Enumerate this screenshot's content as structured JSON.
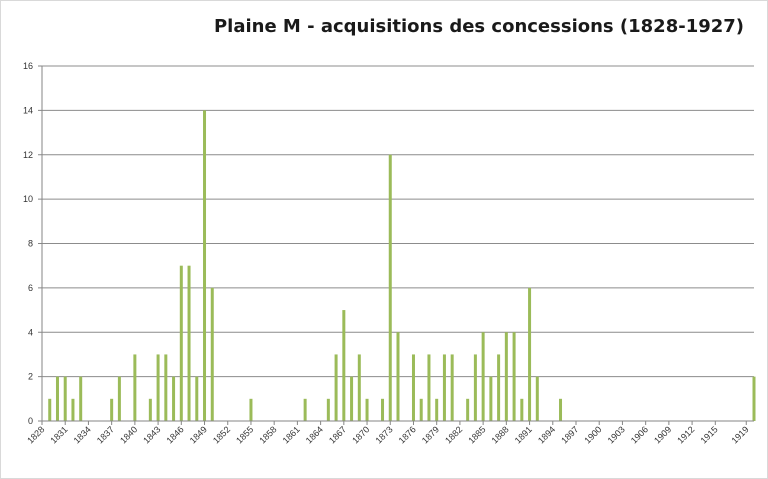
{
  "chart_data": {
    "type": "bar",
    "title": "Plaine M - acquisitions des concessions (1828-1927)",
    "xlabel": "",
    "ylabel": "",
    "ylim": [
      0,
      16
    ],
    "yticks": [
      0,
      2,
      4,
      6,
      8,
      10,
      12,
      14,
      16
    ],
    "grid": true,
    "legend": "none",
    "bar_color": "#9bbb59",
    "categories": [
      1828,
      1829,
      1830,
      1831,
      1832,
      1833,
      1834,
      1835,
      1836,
      1837,
      1838,
      1839,
      1840,
      1841,
      1842,
      1843,
      1844,
      1845,
      1846,
      1847,
      1848,
      1849,
      1850,
      1851,
      1852,
      1853,
      1854,
      1855,
      1856,
      1857,
      1858,
      1859,
      1860,
      1861,
      1862,
      1863,
      1864,
      1865,
      1866,
      1867,
      1868,
      1869,
      1870,
      1871,
      1872,
      1873,
      1874,
      1875,
      1876,
      1877,
      1878,
      1879,
      1880,
      1881,
      1882,
      1883,
      1884,
      1885,
      1886,
      1887,
      1888,
      1889,
      1890,
      1891,
      1892,
      1893,
      1894,
      1895,
      1896,
      1897,
      1898,
      1899,
      1900,
      1901,
      1902,
      1903,
      1904,
      1905,
      1906,
      1907,
      1908,
      1909,
      1910,
      1911,
      1912,
      1913,
      1914,
      1915,
      1916,
      1917,
      1918,
      1919,
      1920
    ],
    "values": [
      0,
      1,
      2,
      2,
      1,
      2,
      0,
      0,
      0,
      1,
      2,
      0,
      3,
      0,
      1,
      3,
      3,
      2,
      7,
      7,
      2,
      14,
      6,
      0,
      0,
      0,
      0,
      1,
      0,
      0,
      0,
      0,
      0,
      0,
      1,
      0,
      0,
      1,
      3,
      5,
      2,
      3,
      1,
      0,
      1,
      12,
      4,
      0,
      3,
      1,
      3,
      1,
      3,
      3,
      0,
      1,
      3,
      4,
      2,
      3,
      4,
      4,
      1,
      6,
      2,
      0,
      0,
      1,
      0,
      0,
      0,
      0,
      0,
      0,
      0,
      0,
      0,
      0,
      0,
      0,
      0,
      0,
      0,
      0,
      0,
      0,
      0,
      0,
      0,
      0,
      0,
      0,
      2
    ],
    "xtick_labels": [
      "1828",
      "1831",
      "1834",
      "1837",
      "1840",
      "1843",
      "1846",
      "1849",
      "1852",
      "1855",
      "1858",
      "1861",
      "1864",
      "1867",
      "1870",
      "1873",
      "1876",
      "1879",
      "1882",
      "1885",
      "1888",
      "1891",
      "1894",
      "1897",
      "1900",
      "1903",
      "1906",
      "1909",
      "1912",
      "1915",
      "1919"
    ]
  }
}
